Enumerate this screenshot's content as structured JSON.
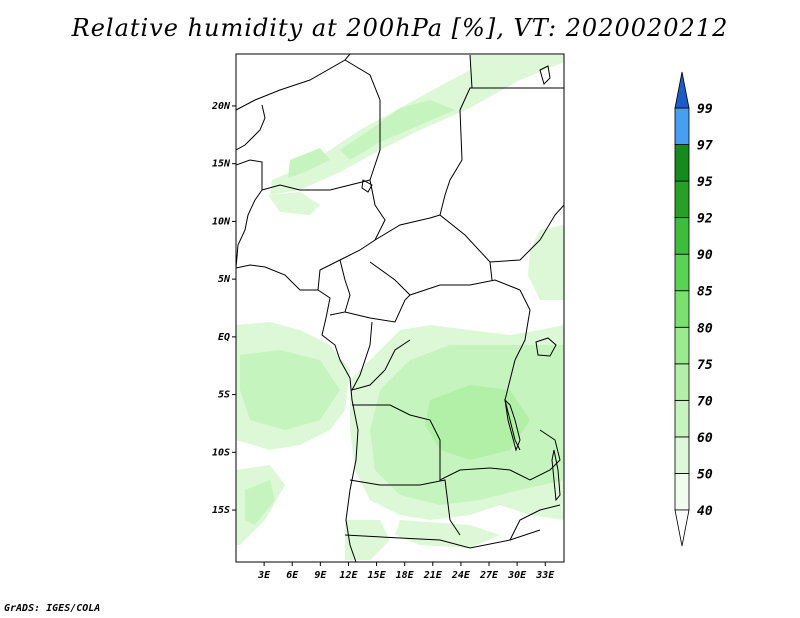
{
  "title": "Relative humidity at 200hPa [%], VT: 2020020212",
  "credit": "GrADS: IGES/COLA",
  "map": {
    "lon_range": [
      0,
      35
    ],
    "lat_range": [
      -19.5,
      24.5
    ],
    "lat_ticks": [
      {
        "value": 20,
        "label": "20N"
      },
      {
        "value": 15,
        "label": "15N"
      },
      {
        "value": 10,
        "label": "10N"
      },
      {
        "value": 5,
        "label": "5N"
      },
      {
        "value": 0,
        "label": "EQ"
      },
      {
        "value": -5,
        "label": "5S"
      },
      {
        "value": -10,
        "label": "10S"
      },
      {
        "value": -15,
        "label": "15S"
      }
    ],
    "lon_ticks": [
      {
        "value": 3,
        "label": "3E"
      },
      {
        "value": 6,
        "label": "6E"
      },
      {
        "value": 9,
        "label": "9E"
      },
      {
        "value": 12,
        "label": "12E"
      },
      {
        "value": 15,
        "label": "15E"
      },
      {
        "value": 18,
        "label": "18E"
      },
      {
        "value": 21,
        "label": "21E"
      },
      {
        "value": 24,
        "label": "24E"
      },
      {
        "value": 27,
        "label": "27E"
      },
      {
        "value": 30,
        "label": "30E"
      },
      {
        "value": 33,
        "label": "33E"
      }
    ]
  },
  "colorbar": {
    "levels": [
      {
        "label": "40",
        "color": "#f0fcee"
      },
      {
        "label": "50",
        "color": "#dcf8d6"
      },
      {
        "label": "60",
        "color": "#c6f4be"
      },
      {
        "label": "70",
        "color": "#b2f0a8"
      },
      {
        "label": "75",
        "color": "#9aea8e"
      },
      {
        "label": "80",
        "color": "#7ae070"
      },
      {
        "label": "85",
        "color": "#5cd254"
      },
      {
        "label": "90",
        "color": "#40bc3c"
      },
      {
        "label": "92",
        "color": "#28a028"
      },
      {
        "label": "95",
        "color": "#168a1c"
      },
      {
        "label": "97",
        "color": "#4a9ef0"
      },
      {
        "label": "99",
        "color": "#2a72d8"
      }
    ],
    "top_arrow_color": "#1c5cc8",
    "bottom_arrow_color": "#ffffff"
  },
  "colors": {
    "light": "#dcf8d6",
    "medium": "#c6f4be",
    "darker": "#b2f0a8",
    "land_border": "#000000"
  }
}
